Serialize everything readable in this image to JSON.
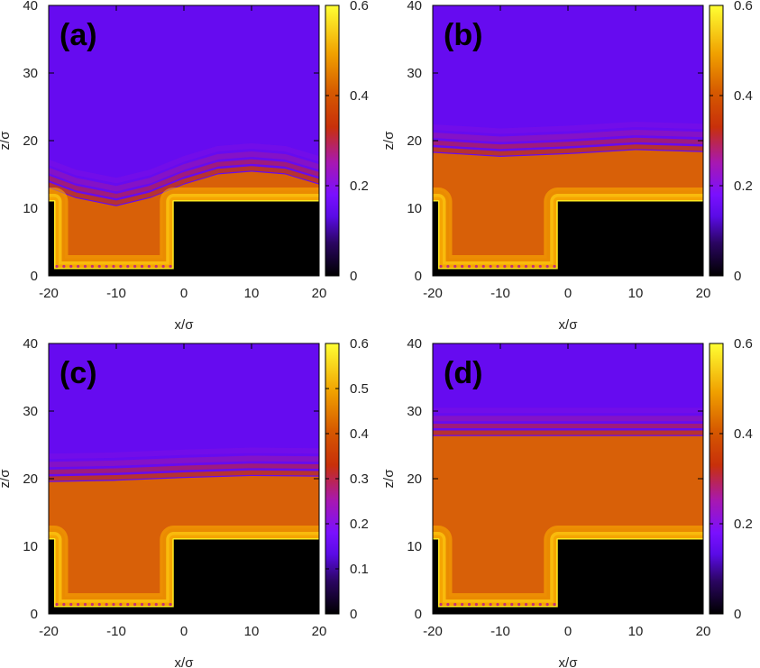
{
  "chart_data": [
    {
      "type": "heatmap",
      "panel_label": "(a)",
      "xlabel": "x/σ",
      "ylabel": "z/σ",
      "xlim": [
        -20,
        20
      ],
      "ylim": [
        0,
        40
      ],
      "x_ticks": [
        "-20",
        "-10",
        "0",
        "10",
        "20"
      ],
      "y_ticks": [
        "0",
        "10",
        "20",
        "30",
        "40"
      ],
      "colorbar": {
        "min": 0,
        "max": 0.6,
        "ticks": [
          "0",
          "0.2",
          "0.4",
          "0.6"
        ]
      },
      "substrate": {
        "groove_x": [
          -20,
          -1.5
        ],
        "groove_bottom_z": 1,
        "step_top_z": 11
      },
      "interface": [
        [
          -20,
          13
        ],
        [
          -16,
          11.5
        ],
        [
          -10,
          10.3
        ],
        [
          -5,
          11.5
        ],
        [
          0,
          13.5
        ],
        [
          5,
          15
        ],
        [
          10,
          15.4
        ],
        [
          15,
          15
        ],
        [
          20,
          13.5
        ]
      ],
      "liquid_density": 0.42,
      "vapor_density": 0.1
    },
    {
      "type": "heatmap",
      "panel_label": "(b)",
      "xlabel": "x/σ",
      "ylabel": "z/σ",
      "xlim": [
        -20,
        20
      ],
      "ylim": [
        0,
        40
      ],
      "x_ticks": [
        "-20",
        "-10",
        "0",
        "10",
        "20"
      ],
      "y_ticks": [
        "0",
        "10",
        "20",
        "30",
        "40"
      ],
      "colorbar": {
        "min": 0,
        "max": 0.6,
        "ticks": [
          "0",
          "0.2",
          "0.4",
          "0.6"
        ]
      },
      "substrate": {
        "groove_x": [
          -20,
          -1.5
        ],
        "groove_bottom_z": 1,
        "step_top_z": 11
      },
      "interface": [
        [
          -20,
          18.2
        ],
        [
          -10,
          17.6
        ],
        [
          0,
          18
        ],
        [
          10,
          18.6
        ],
        [
          20,
          18.3
        ]
      ],
      "liquid_density": 0.42,
      "vapor_density": 0.1
    },
    {
      "type": "heatmap",
      "panel_label": "(c)",
      "xlabel": "x/σ",
      "ylabel": "z/σ",
      "xlim": [
        -20,
        20
      ],
      "ylim": [
        0,
        40
      ],
      "x_ticks": [
        "-20",
        "-10",
        "0",
        "10",
        "20"
      ],
      "y_ticks": [
        "0",
        "10",
        "20",
        "30",
        "40"
      ],
      "colorbar": {
        "min": 0,
        "max": 0.6,
        "ticks": [
          "0",
          "0.1",
          "0.2",
          "0.3",
          "0.4",
          "0.5",
          "0.6"
        ]
      },
      "substrate": {
        "groove_x": [
          -20,
          -1.5
        ],
        "groove_bottom_z": 1,
        "step_top_z": 11
      },
      "interface": [
        [
          -20,
          19.5
        ],
        [
          -10,
          19.7
        ],
        [
          0,
          20.1
        ],
        [
          10,
          20.4
        ],
        [
          20,
          20.3
        ]
      ],
      "liquid_density": 0.42,
      "vapor_density": 0.1
    },
    {
      "type": "heatmap",
      "panel_label": "(d)",
      "xlabel": "x/σ",
      "ylabel": "z/σ",
      "xlim": [
        -20,
        20
      ],
      "ylim": [
        0,
        40
      ],
      "x_ticks": [
        "-20",
        "-10",
        "0",
        "10",
        "20"
      ],
      "y_ticks": [
        "0",
        "10",
        "20",
        "30",
        "40"
      ],
      "colorbar": {
        "min": 0,
        "max": 0.6,
        "ticks": [
          "0",
          "0.2",
          "0.4",
          "0.6"
        ]
      },
      "substrate": {
        "groove_x": [
          -20,
          -1.5
        ],
        "groove_bottom_z": 1,
        "step_top_z": 11
      },
      "interface": [
        [
          -20,
          26.3
        ],
        [
          0,
          26.3
        ],
        [
          20,
          26.3
        ]
      ],
      "liquid_density": 0.42,
      "vapor_density": 0.1
    }
  ]
}
